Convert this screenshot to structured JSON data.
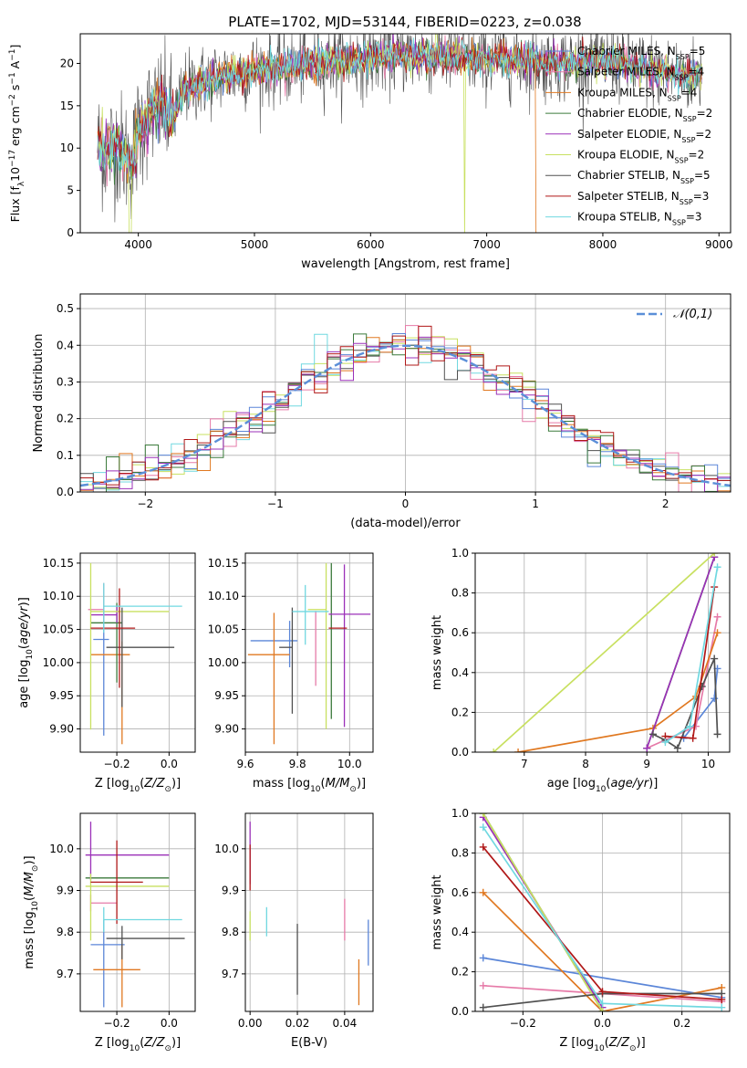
{
  "figure_title": "PLATE=1702, MJD=53144, FIBERID=0223, z=0.038",
  "models": [
    {
      "name": "Chabrier MILES",
      "nssp": "5",
      "color": "#5b86d8"
    },
    {
      "name": "Salpeter MILES",
      "nssp": "4",
      "color": "#e67aa8"
    },
    {
      "name": "Kroupa MILES",
      "nssp": "4",
      "color": "#e07820"
    },
    {
      "name": "Chabrier ELODIE",
      "nssp": "2",
      "color": "#3b7a3b"
    },
    {
      "name": "Salpeter ELODIE",
      "nssp": "2",
      "color": "#9b30b8"
    },
    {
      "name": "Kroupa ELODIE",
      "nssp": "2",
      "color": "#c8e060"
    },
    {
      "name": "Chabrier STELIB",
      "nssp": "5",
      "color": "#505050"
    },
    {
      "name": "Salpeter STELIB",
      "nssp": "3",
      "color": "#b01818"
    },
    {
      "name": "Kroupa STELIB",
      "nssp": "3",
      "color": "#70d8e0"
    }
  ],
  "chart_data": [
    {
      "id": "spectrum",
      "type": "line",
      "xlabel": "wavelength [Angstrom, rest frame]",
      "ylabel": "Flux [f_λ 10^-17 erg cm^-2 s^-1 A^-1]",
      "xlim": [
        3500,
        9100
      ],
      "ylim": [
        0,
        23.5
      ],
      "xticks": [
        4000,
        5000,
        6000,
        7000,
        8000,
        9000
      ],
      "yticks": [
        0,
        5,
        10,
        15,
        20
      ],
      "legend": "top-right",
      "continuum": {
        "x": [
          3650,
          3700,
          3800,
          3900,
          3950,
          4000,
          4100,
          4200,
          4300,
          4400,
          4500,
          4700,
          4900,
          5100,
          5300,
          5500,
          5700,
          5900,
          6100,
          6300,
          6500,
          6700,
          6900,
          7100,
          7300,
          7500,
          7700,
          7900,
          8100,
          8300,
          8500,
          8700,
          8800
        ],
        "y": [
          10.5,
          9.5,
          10.5,
          9.0,
          8.5,
          12.0,
          14.0,
          15.0,
          13.5,
          17.0,
          17.5,
          18.5,
          19.0,
          19.5,
          19.5,
          20.0,
          20.3,
          20.5,
          20.8,
          21.0,
          21.0,
          20.8,
          20.5,
          20.5,
          20.3,
          20.0,
          20.0,
          20.3,
          20.2,
          19.5,
          19.0,
          18.5,
          18.5
        ]
      }
    },
    {
      "id": "residuals",
      "type": "histogram",
      "xlabel": "(data-model)/error",
      "ylabel": "Normed distribution",
      "xlim": [
        -2.5,
        2.5
      ],
      "ylim": [
        0,
        0.54
      ],
      "xticks": [
        -2,
        -1,
        0,
        1,
        2
      ],
      "yticks": [
        0.0,
        0.1,
        0.2,
        0.3,
        0.4,
        0.5
      ],
      "reference": {
        "label": "𝒩(0,1)",
        "mean": 0,
        "sigma": 1,
        "color": "#5b8fd8"
      },
      "legend": "top-right",
      "bin_width": 0.1
    },
    {
      "id": "age-vs-Z",
      "type": "scatter-errorbar",
      "xlabel": "Z [log₁₀(Z/Z☉)]",
      "ylabel": "age  [log₁₀(age/yr)]",
      "xlim": [
        -0.34,
        0.1
      ],
      "ylim": [
        9.865,
        10.165
      ],
      "xticks": [
        -0.2,
        0.0
      ],
      "yticks": [
        9.9,
        9.95,
        10.0,
        10.05,
        10.1,
        10.15
      ],
      "points": [
        {
          "model": 0,
          "x": -0.25,
          "y": 10.035,
          "xerr": [
            0.04,
            0.02
          ],
          "yerr": [
            0.145,
            0.045
          ]
        },
        {
          "model": 1,
          "x": -0.25,
          "y": 10.08,
          "xerr": [
            0.06,
            0.0
          ],
          "yerr": [
            0.02,
            0.04
          ]
        },
        {
          "model": 2,
          "x": -0.18,
          "y": 10.012,
          "xerr": [
            0.12,
            0.03
          ],
          "yerr": [
            0.135,
            0.02
          ]
        },
        {
          "model": 3,
          "x": -0.2,
          "y": 10.06,
          "xerr": [
            0.1,
            0.02
          ],
          "yerr": [
            0.09,
            0.03
          ]
        },
        {
          "model": 4,
          "x": -0.2,
          "y": 10.072,
          "xerr": [
            0.1,
            0.0
          ],
          "yerr": [
            0.012,
            0.012
          ]
        },
        {
          "model": 5,
          "x": -0.3,
          "y": 10.077,
          "xerr": [
            0.0,
            0.3
          ],
          "yerr": [
            0.178,
            0.073
          ]
        },
        {
          "model": 6,
          "x": -0.18,
          "y": 10.023,
          "xerr": [
            0.06,
            0.2
          ],
          "yerr": [
            0.09,
            0.06
          ]
        },
        {
          "model": 7,
          "x": -0.19,
          "y": 10.052,
          "xerr": [
            0.11,
            0.06
          ],
          "yerr": [
            0.09,
            0.06
          ]
        },
        {
          "model": 8,
          "x": -0.25,
          "y": 10.085,
          "xerr": [
            0.0,
            0.3
          ],
          "yerr": [
            0.04,
            0.035
          ]
        }
      ]
    },
    {
      "id": "age-vs-mass",
      "type": "scatter-errorbar",
      "xlabel": "mass [log₁₀(M/M☉)]",
      "ylabel": "",
      "xlim": [
        9.6,
        10.09
      ],
      "ylim": [
        9.865,
        10.165
      ],
      "xticks": [
        9.6,
        9.8,
        10.0
      ],
      "yticks": [
        9.9,
        9.95,
        10.0,
        10.05,
        10.1,
        10.15
      ],
      "points": [
        {
          "model": 0,
          "x": 9.77,
          "y": 10.033,
          "xerr": [
            0.15,
            0.03
          ],
          "yerr": [
            0.04,
            0.03
          ]
        },
        {
          "model": 1,
          "x": 9.87,
          "y": 10.06,
          "xerr": [
            0.0,
            0.0
          ],
          "yerr": [
            0.095,
            0.018
          ]
        },
        {
          "model": 2,
          "x": 9.71,
          "y": 10.012,
          "xerr": [
            0.1,
            0.06
          ],
          "yerr": [
            0.135,
            0.063
          ]
        },
        {
          "model": 3,
          "x": 9.93,
          "y": 10.055,
          "xerr": [
            0.0,
            0.0
          ],
          "yerr": [
            0.14,
            0.095
          ]
        },
        {
          "model": 4,
          "x": 9.98,
          "y": 10.073,
          "xerr": [
            0.06,
            0.1
          ],
          "yerr": [
            0.17,
            0.075
          ]
        },
        {
          "model": 5,
          "x": 9.91,
          "y": 10.08,
          "xerr": [
            0.07,
            0.0
          ],
          "yerr": [
            0.18,
            0.07
          ]
        },
        {
          "model": 6,
          "x": 9.78,
          "y": 10.023,
          "xerr": [
            0.05,
            0.0
          ],
          "yerr": [
            0.1,
            0.06
          ]
        },
        {
          "model": 7,
          "x": 9.92,
          "y": 10.052,
          "xerr": [
            0.0,
            0.07
          ],
          "yerr": [
            0.0,
            0.0
          ]
        },
        {
          "model": 8,
          "x": 9.83,
          "y": 10.077,
          "xerr": [
            0.05,
            0.09
          ],
          "yerr": [
            0.05,
            0.04
          ]
        }
      ]
    },
    {
      "id": "mass-weight-vs-age",
      "type": "line",
      "xlabel": "age  [log₁₀(age/yr)]",
      "ylabel": "mass weight",
      "xlim": [
        6.2,
        10.35
      ],
      "ylim": [
        0,
        1.0
      ],
      "xticks": [
        7,
        8,
        9,
        10
      ],
      "yticks": [
        0.0,
        0.2,
        0.4,
        0.6,
        0.8,
        1.0
      ],
      "series": [
        {
          "model": 0,
          "x": [
            9.6,
            10.1,
            10.15
          ],
          "y": [
            0.07,
            0.27,
            0.42
          ]
        },
        {
          "model": 1,
          "x": [
            9.0,
            9.8,
            10.15
          ],
          "y": [
            0.02,
            0.13,
            0.68
          ]
        },
        {
          "model": 2,
          "x": [
            6.9,
            9.1,
            9.8,
            10.15
          ],
          "y": [
            0.0,
            0.12,
            0.28,
            0.6
          ]
        },
        {
          "model": 3,
          "x": [
            9.0,
            10.1
          ],
          "y": [
            0.02,
            0.98
          ]
        },
        {
          "model": 4,
          "x": [
            9.0,
            10.1
          ],
          "y": [
            0.02,
            0.98
          ]
        },
        {
          "model": 5,
          "x": [
            6.5,
            10.1
          ],
          "y": [
            0.0,
            1.0
          ]
        },
        {
          "model": 6,
          "x": [
            9.1,
            9.3,
            9.5,
            9.9,
            10.1,
            10.15
          ],
          "y": [
            0.09,
            0.06,
            0.02,
            0.33,
            0.47,
            0.09
          ]
        },
        {
          "model": 7,
          "x": [
            9.3,
            9.75,
            10.1
          ],
          "y": [
            0.08,
            0.07,
            0.83
          ]
        },
        {
          "model": 8,
          "x": [
            9.3,
            9.7,
            10.15
          ],
          "y": [
            0.05,
            0.13,
            0.93
          ]
        }
      ]
    },
    {
      "id": "mass-vs-Z",
      "type": "scatter-errorbar",
      "xlabel": "Z [log₁₀(Z/Z☉)]",
      "ylabel": "mass [log₁₀(M/M☉)]",
      "xlim": [
        -0.34,
        0.1
      ],
      "ylim": [
        9.61,
        10.085
      ],
      "xticks": [
        -0.2,
        0.0
      ],
      "yticks": [
        9.7,
        9.8,
        9.9,
        10.0
      ],
      "points": [
        {
          "model": 0,
          "x": -0.25,
          "y": 9.77,
          "xerr": [
            0.05,
            0.08
          ],
          "yerr": [
            0.15,
            0.06
          ]
        },
        {
          "model": 1,
          "x": -0.3,
          "y": 9.87,
          "xerr": [
            0.0,
            0.1
          ],
          "yerr": [
            0.02,
            0.02
          ]
        },
        {
          "model": 2,
          "x": -0.18,
          "y": 9.71,
          "xerr": [
            0.11,
            0.07
          ],
          "yerr": [
            0.09,
            0.06
          ]
        },
        {
          "model": 3,
          "x": -0.3,
          "y": 9.93,
          "xerr": [
            0.02,
            0.3
          ],
          "yerr": [
            0.0,
            0.0
          ]
        },
        {
          "model": 4,
          "x": -0.3,
          "y": 9.985,
          "xerr": [
            0.02,
            0.3
          ],
          "yerr": [
            0.06,
            0.08
          ]
        },
        {
          "model": 5,
          "x": -0.3,
          "y": 9.91,
          "xerr": [
            0.02,
            0.3
          ],
          "yerr": [
            0.13,
            0.03
          ]
        },
        {
          "model": 6,
          "x": -0.18,
          "y": 9.785,
          "xerr": [
            0.06,
            0.24
          ],
          "yerr": [
            0.05,
            0.03
          ]
        },
        {
          "model": 7,
          "x": -0.2,
          "y": 9.92,
          "xerr": [
            0.1,
            0.1
          ],
          "yerr": [
            0.1,
            0.1
          ]
        },
        {
          "model": 8,
          "x": -0.25,
          "y": 9.83,
          "xerr": [
            0.0,
            0.3
          ],
          "yerr": [
            0.03,
            0.03
          ]
        }
      ]
    },
    {
      "id": "mass-vs-EBV",
      "type": "scatter-errorbar",
      "xlabel": "E(B-V)",
      "ylabel": "",
      "xlim": [
        -0.002,
        0.052
      ],
      "ylim": [
        9.61,
        10.085
      ],
      "xticks": [
        0.0,
        0.02,
        0.04
      ],
      "yticks": [
        9.7,
        9.8,
        9.9,
        10.0
      ],
      "points": [
        {
          "model": 0,
          "x": 0.05,
          "y": 9.77,
          "xerr": [
            0,
            0
          ],
          "yerr": [
            0.05,
            0.06
          ]
        },
        {
          "model": 1,
          "x": 0.04,
          "y": 9.83,
          "xerr": [
            0,
            0
          ],
          "yerr": [
            0.05,
            0.05
          ]
        },
        {
          "model": 2,
          "x": 0.046,
          "y": 9.685,
          "xerr": [
            0,
            0
          ],
          "yerr": [
            0.06,
            0.05
          ]
        },
        {
          "model": 3,
          "x": 0.0,
          "y": 9.93,
          "xerr": [
            0,
            0
          ],
          "yerr": [
            0.0,
            0.0
          ]
        },
        {
          "model": 4,
          "x": 0.0,
          "y": 9.985,
          "xerr": [
            0,
            0
          ],
          "yerr": [
            0.07,
            0.08
          ]
        },
        {
          "model": 5,
          "x": 0.0,
          "y": 9.83,
          "xerr": [
            0,
            0
          ],
          "yerr": [
            0.05,
            0.02
          ]
        },
        {
          "model": 6,
          "x": 0.02,
          "y": 9.73,
          "xerr": [
            0,
            0
          ],
          "yerr": [
            0.08,
            0.09
          ]
        },
        {
          "model": 7,
          "x": 0.0,
          "y": 9.955,
          "xerr": [
            0,
            0
          ],
          "yerr": [
            0.055,
            0.055
          ]
        },
        {
          "model": 8,
          "x": 0.007,
          "y": 9.825,
          "xerr": [
            0,
            0
          ],
          "yerr": [
            0.035,
            0.035
          ]
        }
      ]
    },
    {
      "id": "mass-weight-vs-Z",
      "type": "line",
      "xlabel": "Z [log₁₀(Z/Z☉)]",
      "ylabel": "mass weight",
      "xlim": [
        -0.32,
        0.32
      ],
      "ylim": [
        0,
        1.0
      ],
      "xticks": [
        -0.2,
        0.0,
        0.2
      ],
      "yticks": [
        0.0,
        0.2,
        0.4,
        0.6,
        0.8,
        1.0
      ],
      "series": [
        {
          "model": 0,
          "x": [
            -0.3,
            0.3
          ],
          "y": [
            0.27,
            0.07
          ]
        },
        {
          "model": 1,
          "x": [
            -0.3,
            0.0,
            0.3
          ],
          "y": [
            0.13,
            0.09,
            0.05
          ]
        },
        {
          "model": 2,
          "x": [
            -0.3,
            0.0,
            0.3
          ],
          "y": [
            0.6,
            0.0,
            0.12
          ]
        },
        {
          "model": 3,
          "x": [
            -0.3,
            0.0
          ],
          "y": [
            1.0,
            0.0
          ]
        },
        {
          "model": 4,
          "x": [
            -0.3,
            0.0
          ],
          "y": [
            0.98,
            0.02
          ]
        },
        {
          "model": 5,
          "x": [
            -0.3,
            0.0
          ],
          "y": [
            1.0,
            0.0
          ]
        },
        {
          "model": 6,
          "x": [
            -0.3,
            0.0,
            0.3
          ],
          "y": [
            0.02,
            0.09,
            0.09
          ]
        },
        {
          "model": 7,
          "x": [
            -0.3,
            0.0,
            0.3
          ],
          "y": [
            0.83,
            0.1,
            0.06
          ]
        },
        {
          "model": 8,
          "x": [
            -0.3,
            0.0,
            0.3
          ],
          "y": [
            0.93,
            0.04,
            0.02
          ]
        }
      ]
    }
  ]
}
